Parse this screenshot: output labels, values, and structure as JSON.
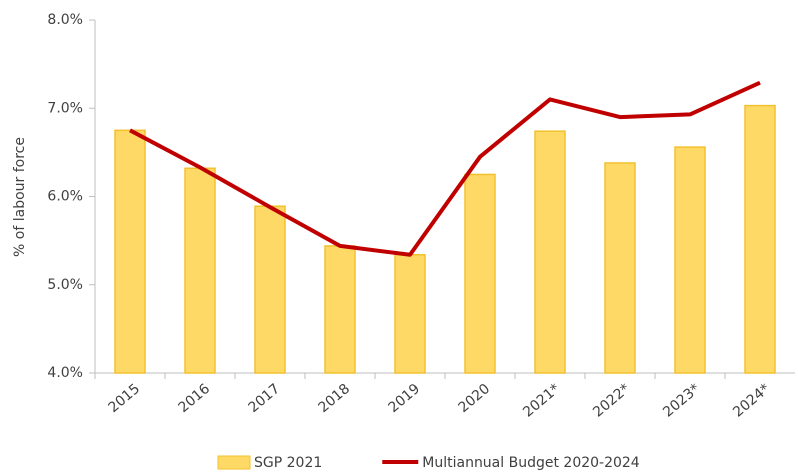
{
  "chart_data": {
    "type": "combo",
    "y_label": "% of labour force",
    "categories": [
      "2015",
      "2016",
      "2017",
      "2018",
      "2019",
      "2020",
      "2021*",
      "2022*",
      "2023*",
      "2024*"
    ],
    "series": [
      {
        "name": "SGP 2021",
        "type": "bar",
        "color": "#ffd966",
        "values": [
          6.75,
          6.32,
          5.89,
          5.44,
          5.34,
          6.25,
          6.74,
          6.38,
          6.56,
          7.03
        ]
      },
      {
        "name": "Multiannual Budget 2020-2024",
        "type": "line",
        "color": "#c00000",
        "values": [
          6.75,
          6.33,
          5.88,
          5.44,
          5.34,
          6.45,
          7.1,
          6.9,
          6.93,
          7.29
        ]
      }
    ],
    "ylim": [
      4,
      8
    ],
    "yticks": [
      {
        "value": 4,
        "label": "4.0%"
      },
      {
        "value": 5,
        "label": "5.0%"
      },
      {
        "value": 6,
        "label": "6.0%"
      },
      {
        "value": 7,
        "label": "7.0%"
      },
      {
        "value": 8,
        "label": "8.0%"
      }
    ],
    "grid": false
  }
}
